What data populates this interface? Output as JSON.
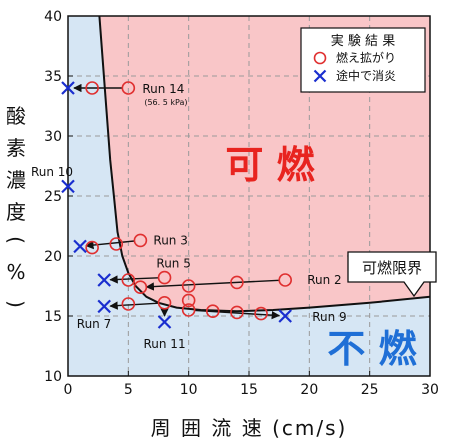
{
  "chart_data": {
    "type": "scatter",
    "xlabel": "周 囲 流 速 (cm/s)",
    "ylabel": "酸 素 濃 度 (%)",
    "xlim": [
      0,
      30
    ],
    "ylim": [
      10,
      40
    ],
    "x_ticks": [
      0,
      5,
      10,
      15,
      20,
      25,
      30
    ],
    "y_ticks": [
      10,
      15,
      20,
      25,
      30,
      35,
      40
    ],
    "grid": true,
    "legend": {
      "title": "実 験 結 果",
      "placement": "top-right",
      "entries": [
        {
          "label": "燃え拡がり",
          "marker": "circle",
          "color": "#e03030"
        },
        {
          "label": "途中で消炎",
          "marker": "x",
          "color": "#1a2ecf"
        }
      ]
    },
    "regions": [
      {
        "label": "可 燃",
        "color": "#e8241f",
        "fill": "#f9c6c8"
      },
      {
        "label": "不 燃",
        "color": "#1f6fd6",
        "fill": "#d6e6f4"
      }
    ],
    "boundary": {
      "label": "可燃限界",
      "points": [
        [
          2.6,
          40
        ],
        [
          2.9,
          36
        ],
        [
          3.2,
          32
        ],
        [
          3.5,
          28
        ],
        [
          3.8,
          25
        ],
        [
          4.1,
          22
        ],
        [
          4.5,
          20
        ],
        [
          5,
          18.6
        ],
        [
          5.6,
          17.5
        ],
        [
          6.5,
          16.6
        ],
        [
          7.5,
          16.1
        ],
        [
          9,
          15.7
        ],
        [
          11,
          15.5
        ],
        [
          14,
          15.4
        ],
        [
          17,
          15.5
        ],
        [
          20,
          15.7
        ],
        [
          25,
          16.1
        ],
        [
          30,
          16.6
        ]
      ]
    },
    "series": [
      {
        "name": "燃え拡がり",
        "marker": "circle",
        "color": "#e03030",
        "points": [
          [
            2,
            34
          ],
          [
            5,
            34
          ],
          [
            2,
            20.7
          ],
          [
            4,
            21
          ],
          [
            6,
            21.3
          ],
          [
            5,
            18
          ],
          [
            6,
            17.4
          ],
          [
            8,
            18.2
          ],
          [
            10,
            17.5
          ],
          [
            14,
            17.8
          ],
          [
            18,
            18
          ],
          [
            5,
            16
          ],
          [
            8,
            16.1
          ],
          [
            10,
            16.3
          ],
          [
            10,
            15.5
          ],
          [
            12,
            15.4
          ],
          [
            14,
            15.3
          ],
          [
            16,
            15.2
          ]
        ]
      },
      {
        "name": "途中で消炎",
        "marker": "x",
        "color": "#1a2ecf",
        "points": [
          [
            0,
            34
          ],
          [
            0,
            25.8
          ],
          [
            1,
            20.8
          ],
          [
            3,
            18
          ],
          [
            3,
            15.8
          ],
          [
            8,
            14.5
          ],
          [
            18,
            15
          ]
        ]
      }
    ],
    "annotations": [
      {
        "text": "Run 14",
        "sub": "(56. 5 kPa)",
        "from": [
          5,
          34
        ],
        "to": [
          0,
          34
        ]
      },
      {
        "text": "Run 10"
      },
      {
        "text": "Run 3",
        "from": [
          6,
          21.3
        ],
        "to": [
          1,
          20.8
        ]
      },
      {
        "text": "Run 5",
        "from": [
          8,
          18.2
        ],
        "to": [
          3,
          18
        ]
      },
      {
        "text": "Run 2",
        "from": [
          18,
          18
        ],
        "to": [
          6,
          17.4
        ]
      },
      {
        "text": "Run 7",
        "from": [
          8,
          16.1
        ],
        "to": [
          3,
          15.8
        ]
      },
      {
        "text": "Run 11",
        "from": [
          8,
          16.1
        ],
        "to": [
          8,
          14.5
        ]
      },
      {
        "text": "Run 9",
        "from": [
          10,
          15.5
        ],
        "to": [
          18,
          15
        ]
      }
    ]
  }
}
